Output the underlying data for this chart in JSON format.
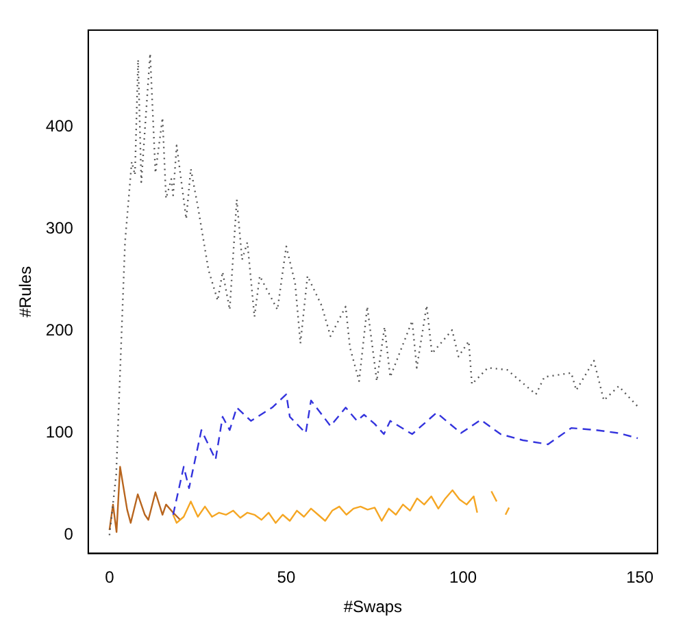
{
  "chart_data": {
    "type": "line",
    "xlabel": "#Swaps",
    "ylabel": "#Rules",
    "xlim": [
      -6,
      155
    ],
    "ylim": [
      -18,
      495
    ],
    "xticks": [
      0,
      50,
      100,
      150
    ],
    "yticks": [
      0,
      100,
      200,
      300,
      400
    ],
    "grid": false,
    "legend": false,
    "marker": "none",
    "series": [
      {
        "color": "#555555",
        "line_style": "dotted",
        "x": [
          0,
          1.9,
          4.4,
          6.3,
          7.2,
          8.1,
          9,
          11.5,
          13,
          15,
          16,
          17.5,
          18,
          19,
          21.7,
          23,
          25,
          28,
          30.6,
          32,
          34,
          36,
          37.5,
          39,
          41,
          42.5,
          47.5,
          50,
          52.5,
          54,
          56,
          60,
          62.5,
          66.8,
          68,
          70.6,
          72.9,
          75.6,
          77.8,
          79.4,
          85.6,
          86.9,
          89.7,
          91.2,
          96.9,
          98.7,
          101.6,
          102.5,
          107,
          112.5,
          120.6,
          123,
          130.6,
          132,
          137,
          139.8,
          144,
          149.4
        ],
        "values": [
          0,
          59,
          287,
          366,
          353,
          466,
          346,
          472,
          355,
          409,
          330,
          349,
          333,
          382,
          310,
          359,
          322,
          260,
          230,
          258,
          221,
          329,
          270,
          287,
          214,
          254,
          221,
          283,
          247,
          188,
          254,
          225,
          195,
          224,
          184,
          151,
          224,
          151,
          204,
          155,
          210,
          164,
          225,
          178,
          201,
          175,
          190,
          148,
          164,
          162,
          138,
          155,
          159,
          142,
          171,
          132,
          146,
          126
        ]
      },
      {
        "color": "#3333dd",
        "line_style": "dashed",
        "x": [
          18,
          21,
          22.5,
          26,
          30,
          32,
          34,
          36,
          40,
          46,
          50,
          51,
          55.5,
          57,
          62.5,
          66.8,
          70,
          72,
          75,
          77.6,
          79.4,
          85.6,
          92.5,
          99.4,
          105,
          110.6,
          116.9,
          124,
          130.6,
          137.5,
          144,
          149.4
        ],
        "values": [
          20,
          67,
          46,
          103,
          74,
          116,
          103,
          125,
          112,
          125,
          138,
          116,
          100,
          132,
          107,
          125,
          112,
          118,
          109,
          99,
          112,
          99,
          120,
          100,
          113,
          99,
          93,
          89,
          105,
          103,
          100,
          95
        ]
      },
      {
        "color": "#f5a623",
        "line_style": "solid",
        "x": [
          18,
          19,
          21,
          23,
          25,
          27,
          29,
          31,
          33,
          35,
          37,
          39,
          41,
          43,
          45,
          47,
          49,
          51,
          53,
          55,
          57,
          59,
          61,
          63,
          65,
          67,
          69,
          71,
          73,
          75,
          77,
          79,
          81,
          83,
          85,
          87,
          89,
          91,
          93,
          95,
          97,
          99,
          101,
          103,
          104,
          106,
          108,
          109.5,
          111,
          112,
          113
        ],
        "values": [
          20,
          12,
          18,
          33,
          18,
          28,
          18,
          22,
          20,
          24,
          17,
          22,
          20,
          15,
          22,
          12,
          20,
          14,
          24,
          18,
          26,
          20,
          14,
          24,
          28,
          20,
          26,
          28,
          25,
          27,
          14,
          26,
          20,
          30,
          24,
          36,
          30,
          38,
          26,
          36,
          44,
          35,
          30,
          38,
          22,
          null,
          43,
          33,
          null,
          20,
          27
        ]
      },
      {
        "color": "#b8651e",
        "line_style": "solid",
        "x": [
          0,
          1,
          2,
          3,
          5,
          6,
          8,
          10,
          11,
          13,
          15,
          16,
          18,
          20
        ],
        "values": [
          5,
          30,
          3,
          67,
          25,
          12,
          40,
          20,
          15,
          42,
          20,
          30,
          22,
          15
        ]
      }
    ]
  }
}
